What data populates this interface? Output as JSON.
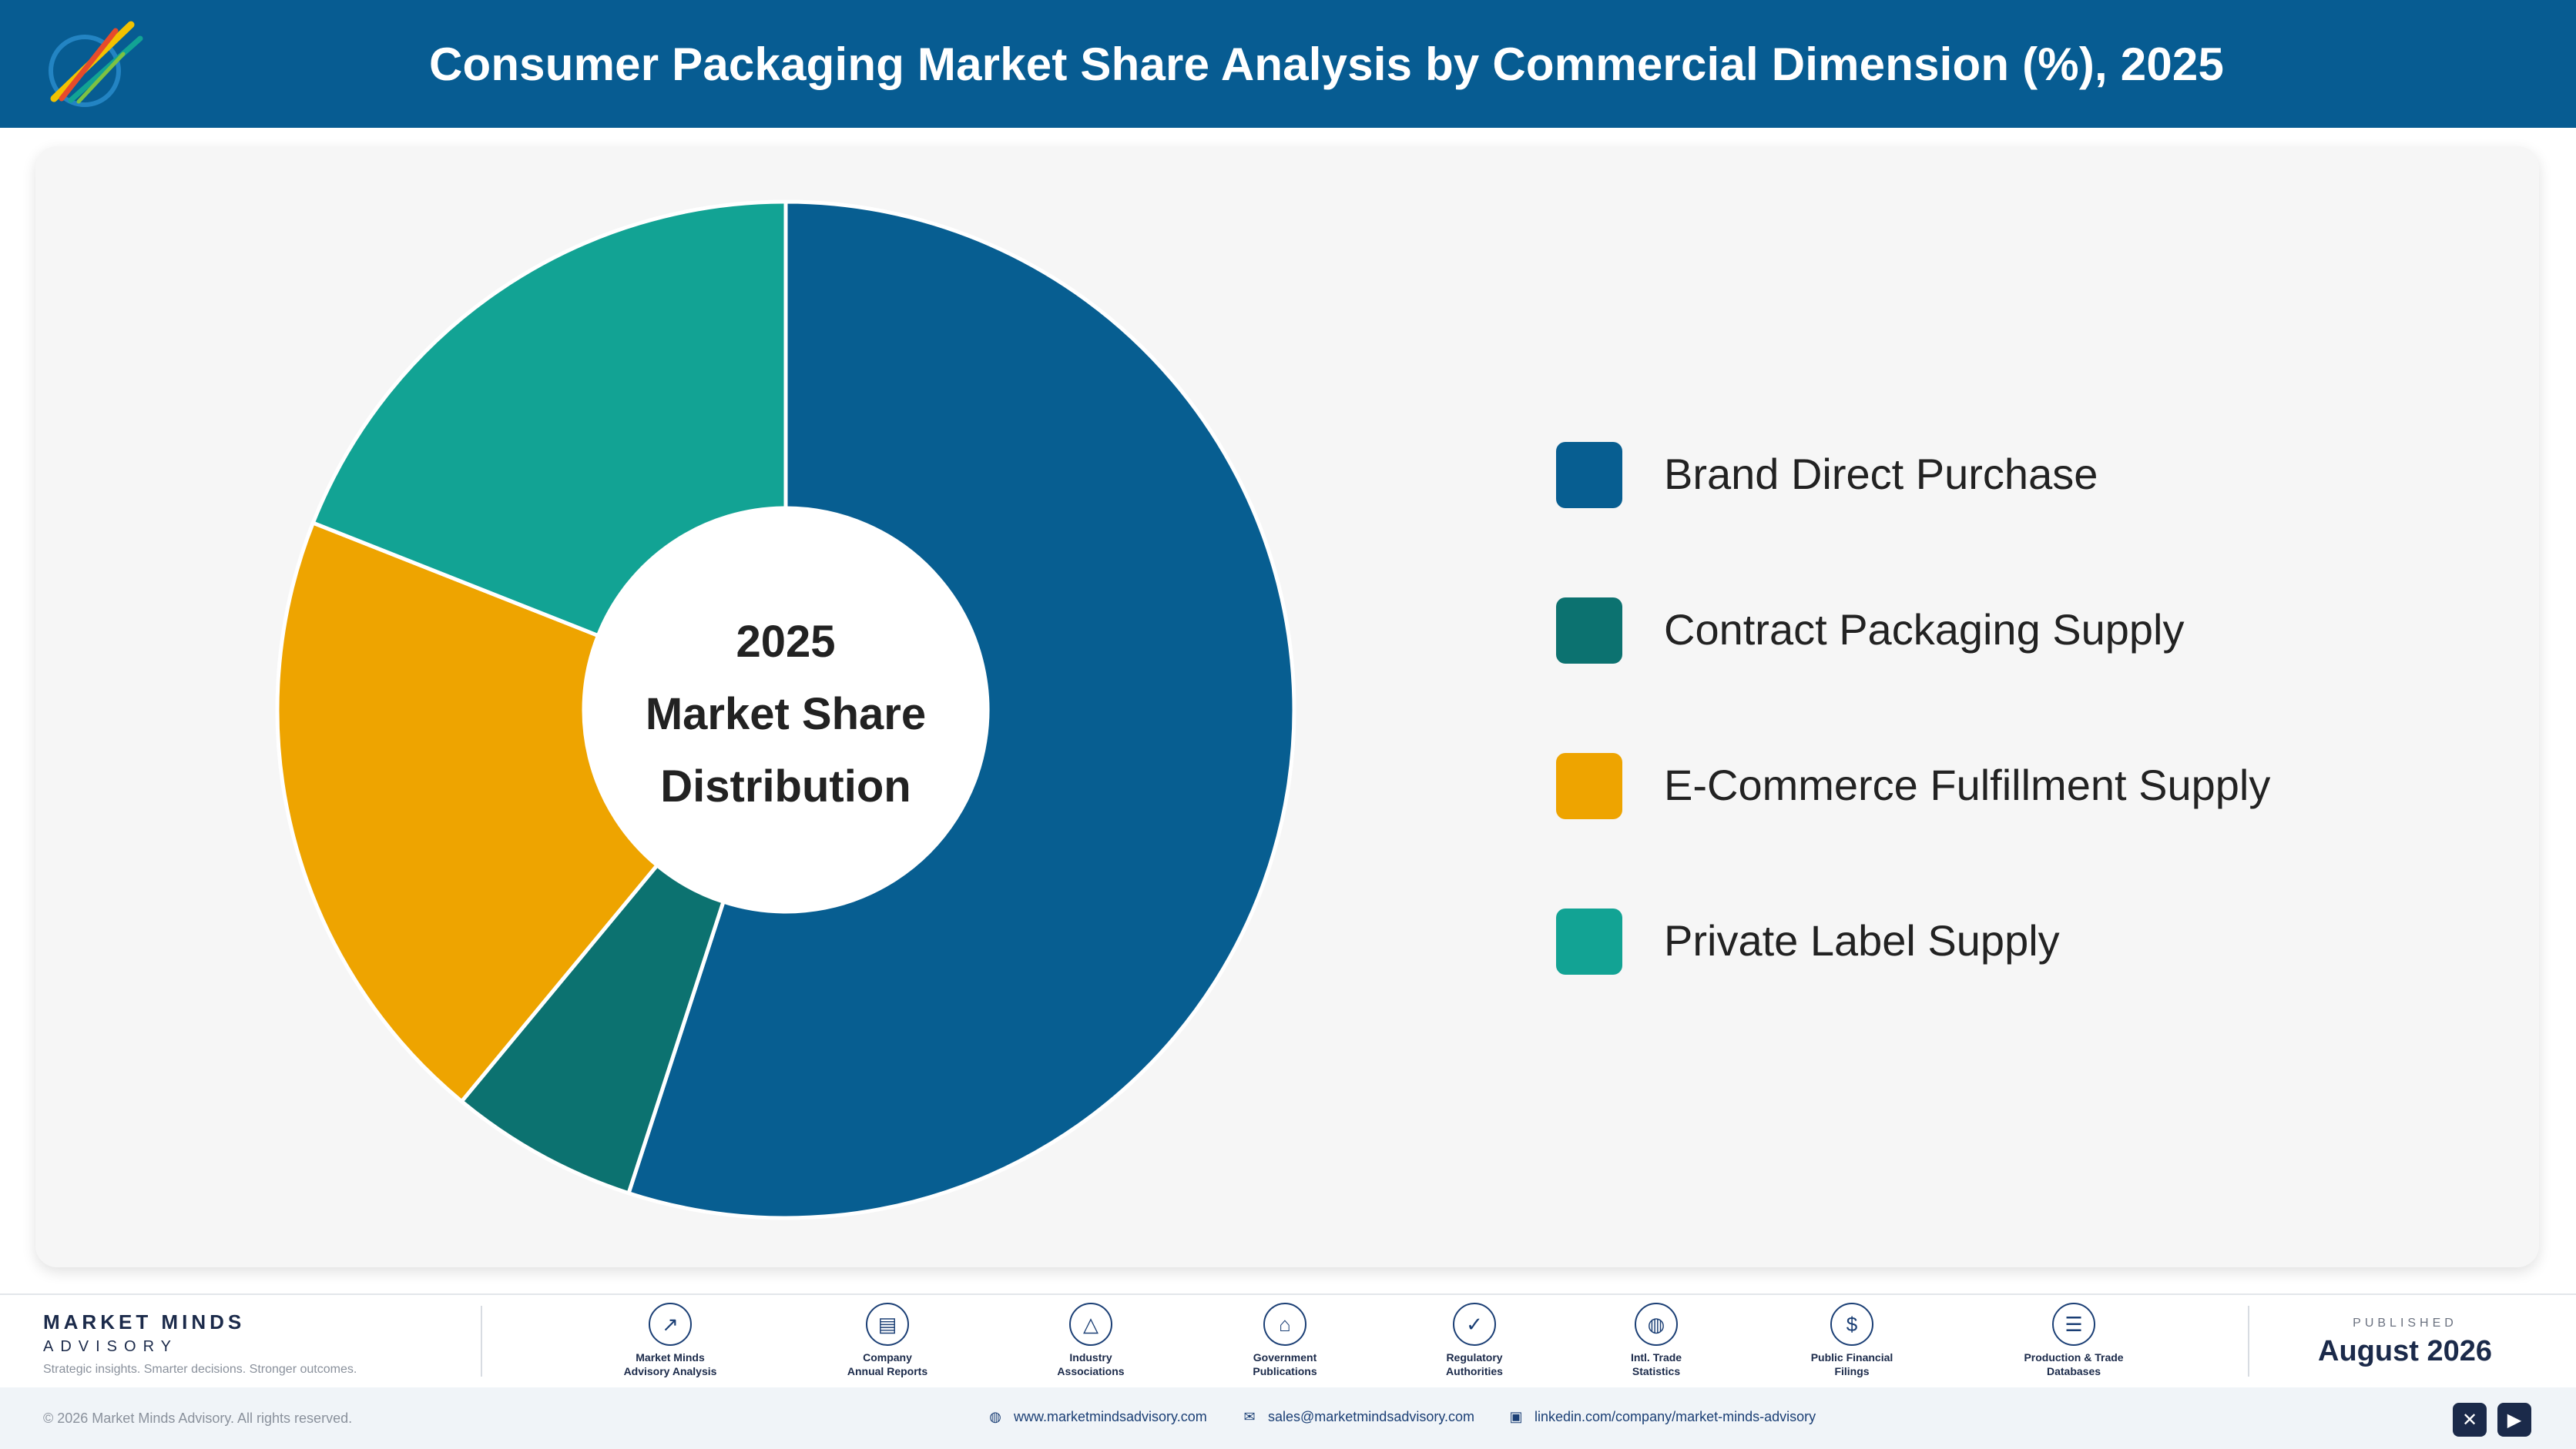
{
  "header": {
    "title": "Consumer Packaging Market Share Analysis by Commercial Dimension (%), 2025",
    "logo_icon": "brand-logo-icon"
  },
  "chart_data": {
    "type": "pie",
    "donut": true,
    "title": "Consumer Packaging Market Share Analysis by Commercial Dimension (%), 2025",
    "center_label": [
      "2025",
      "Market Share",
      "Distribution"
    ],
    "categories": [
      "Brand Direct Purchase",
      "Contract Packaging Supply",
      "E-Commerce Fulfillment Supply",
      "Private Label Supply"
    ],
    "values": [
      55,
      6,
      20,
      19
    ],
    "unit": "%",
    "colors": [
      "#075e91",
      "#0c7270",
      "#eea400",
      "#12a394"
    ],
    "legend_position": "right"
  },
  "footer": {
    "brand_name": "MARKET MINDS",
    "brand_sub": "ADVISORY",
    "brand_tagline": "Strategic insights. Smarter decisions. Stronger outcomes.",
    "sources": [
      {
        "line1": "Market Minds",
        "line2": "Advisory Analysis",
        "icon": "trend-line-icon"
      },
      {
        "line1": "Company",
        "line2": "Annual Reports",
        "icon": "document-icon"
      },
      {
        "line1": "Industry",
        "line2": "Associations",
        "icon": "network-icon"
      },
      {
        "line1": "Government",
        "line2": "Publications",
        "icon": "government-building-icon"
      },
      {
        "line1": "Regulatory",
        "line2": "Authorities",
        "icon": "shield-check-icon"
      },
      {
        "line1": "Intl. Trade",
        "line2": "Statistics",
        "icon": "globe-icon"
      },
      {
        "line1": "Public Financial",
        "line2": "Filings",
        "icon": "currency-icon"
      },
      {
        "line1": "Production & Trade",
        "line2": "Databases",
        "icon": "database-icon"
      }
    ],
    "published_label": "PUBLISHED",
    "published_date": "August 2026"
  },
  "bottom": {
    "copyright": "© 2026 Market Minds Advisory. All rights reserved.",
    "website": "www.marketmindsadvisory.com",
    "email": "sales@marketmindsadvisory.com",
    "linkedin": "linkedin.com/company/market-minds-advisory",
    "icons": [
      "globe-icon",
      "mail-icon",
      "linkedin-icon",
      "x-social-icon",
      "youtube-icon"
    ]
  }
}
